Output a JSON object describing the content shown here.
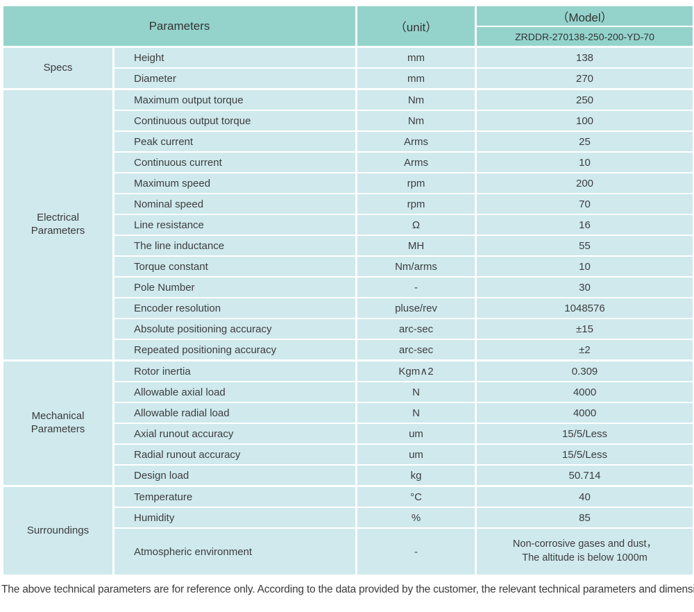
{
  "colors": {
    "header_bg": "#94d3cc",
    "row_bg": "#cfe9ed",
    "border": "#ffffff",
    "text": "#3d3d3d"
  },
  "table": {
    "header": {
      "parameters_label": "Parameters",
      "unit_label": "（unit）",
      "model_label": "（Model）",
      "model_value": "ZRDDR-270138-250-200-YD-70"
    },
    "groups": [
      {
        "name": "Specs",
        "rows": [
          {
            "param": "Height",
            "unit": "mm",
            "value": "138"
          },
          {
            "param": "Diameter",
            "unit": "mm",
            "value": "270"
          }
        ]
      },
      {
        "name": "Electrical\nParameters",
        "rows": [
          {
            "param": "Maximum output torque",
            "unit": "Nm",
            "value": "250"
          },
          {
            "param": "Continuous output torque",
            "unit": "Nm",
            "value": "100"
          },
          {
            "param": "Peak current",
            "unit": "Arms",
            "value": "25"
          },
          {
            "param": "Continuous current",
            "unit": "Arms",
            "value": "10"
          },
          {
            "param": "Maximum speed",
            "unit": "rpm",
            "value": "200"
          },
          {
            "param": "Nominal speed",
            "unit": "rpm",
            "value": "70"
          },
          {
            "param": "Line resistance",
            "unit": "Ω",
            "value": "16"
          },
          {
            "param": "The line inductance",
            "unit": "MH",
            "value": "55"
          },
          {
            "param": "Torque constant",
            "unit": "Nm/arms",
            "value": "10"
          },
          {
            "param": "Pole Number",
            "unit": "-",
            "value": "30"
          },
          {
            "param": "Encoder resolution",
            "unit": "pluse/rev",
            "value": "1048576"
          },
          {
            "param": "Absolute positioning accuracy",
            "unit": "arc-sec",
            "value": "±15"
          },
          {
            "param": "Repeated positioning accuracy",
            "unit": "arc-sec",
            "value": "±2"
          }
        ]
      },
      {
        "name": "Mechanical\nParameters",
        "rows": [
          {
            "param": "Rotor inertia",
            "unit": "Kgm∧2",
            "value": "0.309"
          },
          {
            "param": "Allowable axial load",
            "unit": "N",
            "value": "4000"
          },
          {
            "param": "Allowable radial load",
            "unit": "N",
            "value": "4000"
          },
          {
            "param": "Axial runout accuracy",
            "unit": "um",
            "value": "15/5/Less"
          },
          {
            "param": "Radial runout accuracy",
            "unit": "um",
            "value": "15/5/Less"
          },
          {
            "param": "Design load",
            "unit": "kg",
            "value": "50.714"
          }
        ]
      },
      {
        "name": "Surroundings",
        "rows": [
          {
            "param": "Temperature",
            "unit": "°C",
            "value": "40"
          },
          {
            "param": "Humidity",
            "unit": "%",
            "value": "85"
          },
          {
            "param": "Atmospheric environment",
            "unit": "-",
            "value": "Non-corrosive gases and dust，\nThe altitude is below 1000m"
          }
        ]
      }
    ],
    "footnote": "The above technical parameters are for reference only. According to the data provided by the customer, the relevant technical parameters and dimensions will be issued."
  }
}
